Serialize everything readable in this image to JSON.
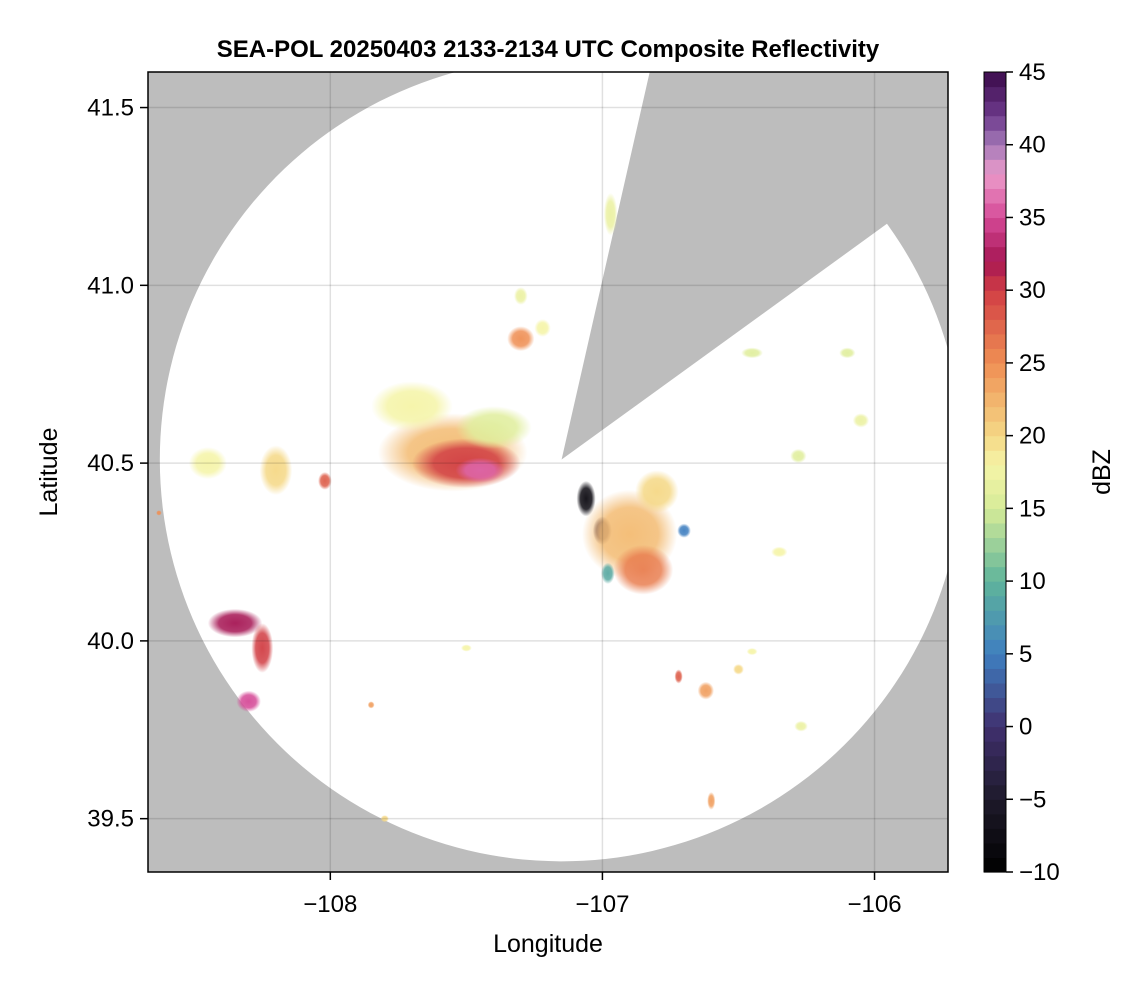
{
  "chart_data": {
    "type": "heatmap",
    "title": "SEA-POL 20250403 2133-2134 UTC Composite Reflectivity",
    "xlabel": "Longitude",
    "ylabel": "Latitude",
    "xlim": [
      -108.67,
      -105.73
    ],
    "ylim": [
      39.35,
      41.6
    ],
    "x_ticks": [
      -108,
      -107,
      -106
    ],
    "x_tick_labels": [
      "−108",
      "−107",
      "−106"
    ],
    "y_ticks": [
      39.5,
      40.0,
      40.5,
      41.0,
      41.5
    ],
    "y_tick_labels": [
      "39.5",
      "40.0",
      "40.5",
      "41.0",
      "41.5"
    ],
    "grid": true,
    "background_color": "#bdbdbd",
    "coverage_color": "#ffffff",
    "radar": {
      "center_lon": -107.15,
      "center_lat": 40.51,
      "range_deg_lat": 1.13,
      "blocked_sector": {
        "from_lon_lat": [
          -106.85,
          41.52
        ],
        "to_lon_lat": [
          -106.05,
          41.12
        ]
      }
    },
    "colorbar": {
      "label": "dBZ",
      "min": -10,
      "max": 45,
      "ticks": [
        -10,
        -5,
        0,
        5,
        10,
        15,
        20,
        25,
        30,
        35,
        40,
        45
      ],
      "tick_labels": [
        "−10",
        "−5",
        "0",
        "5",
        "10",
        "15",
        "20",
        "25",
        "30",
        "35",
        "40",
        "45"
      ],
      "stops": [
        {
          "dbz": -10,
          "color": "#000000"
        },
        {
          "dbz": -5,
          "color": "#1e1a2a"
        },
        {
          "dbz": 0,
          "color": "#40306f"
        },
        {
          "dbz": 5,
          "color": "#3f7fc0"
        },
        {
          "dbz": 10,
          "color": "#5fb49b"
        },
        {
          "dbz": 15,
          "color": "#d6eb98"
        },
        {
          "dbz": 18,
          "color": "#f5f4a7"
        },
        {
          "dbz": 20,
          "color": "#f5d886"
        },
        {
          "dbz": 25,
          "color": "#ef8f54"
        },
        {
          "dbz": 30,
          "color": "#d13e44"
        },
        {
          "dbz": 32,
          "color": "#a61654"
        },
        {
          "dbz": 35,
          "color": "#d54a97"
        },
        {
          "dbz": 38,
          "color": "#ec9bcb"
        },
        {
          "dbz": 40,
          "color": "#a57ab8"
        },
        {
          "dbz": 42,
          "color": "#6d3a8c"
        },
        {
          "dbz": 45,
          "color": "#3a0a4a"
        }
      ]
    },
    "echo_cells": [
      {
        "lon": -107.55,
        "lat": 40.53,
        "dbz": 22,
        "w": 0.55,
        "h": 0.22
      },
      {
        "lon": -107.5,
        "lat": 40.5,
        "dbz": 30,
        "w": 0.4,
        "h": 0.14
      },
      {
        "lon": -107.45,
        "lat": 40.48,
        "dbz": 36,
        "w": 0.18,
        "h": 0.07
      },
      {
        "lon": -107.7,
        "lat": 40.66,
        "dbz": 18,
        "w": 0.3,
        "h": 0.14
      },
      {
        "lon": -107.4,
        "lat": 40.6,
        "dbz": 16,
        "w": 0.28,
        "h": 0.12
      },
      {
        "lon": -107.06,
        "lat": 40.4,
        "dbz": -8,
        "w": 0.07,
        "h": 0.1
      },
      {
        "lon": -107.0,
        "lat": 40.31,
        "dbz": -2,
        "w": 0.07,
        "h": 0.08
      },
      {
        "lon": -106.9,
        "lat": 40.3,
        "dbz": 22,
        "w": 0.35,
        "h": 0.25
      },
      {
        "lon": -106.85,
        "lat": 40.2,
        "dbz": 26,
        "w": 0.22,
        "h": 0.14
      },
      {
        "lon": -106.8,
        "lat": 40.42,
        "dbz": 20,
        "w": 0.16,
        "h": 0.12
      },
      {
        "lon": -106.7,
        "lat": 40.31,
        "dbz": 5,
        "w": 0.05,
        "h": 0.04
      },
      {
        "lon": -106.98,
        "lat": 40.19,
        "dbz": 9,
        "w": 0.05,
        "h": 0.06
      },
      {
        "lon": -108.45,
        "lat": 40.5,
        "dbz": 18,
        "w": 0.14,
        "h": 0.09
      },
      {
        "lon": -108.2,
        "lat": 40.48,
        "dbz": 20,
        "w": 0.12,
        "h": 0.14
      },
      {
        "lon": -108.02,
        "lat": 40.45,
        "dbz": 28,
        "w": 0.05,
        "h": 0.05
      },
      {
        "lon": -108.35,
        "lat": 40.05,
        "dbz": 32,
        "w": 0.2,
        "h": 0.08
      },
      {
        "lon": -108.25,
        "lat": 39.98,
        "dbz": 30,
        "w": 0.08,
        "h": 0.14
      },
      {
        "lon": -108.3,
        "lat": 39.83,
        "dbz": 35,
        "w": 0.09,
        "h": 0.06
      },
      {
        "lon": -107.3,
        "lat": 40.85,
        "dbz": 25,
        "w": 0.1,
        "h": 0.07
      },
      {
        "lon": -107.22,
        "lat": 40.88,
        "dbz": 18,
        "w": 0.06,
        "h": 0.05
      },
      {
        "lon": -107.3,
        "lat": 40.97,
        "dbz": 17,
        "w": 0.05,
        "h": 0.05
      },
      {
        "lon": -106.97,
        "lat": 41.2,
        "dbz": 17,
        "w": 0.05,
        "h": 0.12
      },
      {
        "lon": -106.45,
        "lat": 40.81,
        "dbz": 16,
        "w": 0.08,
        "h": 0.03
      },
      {
        "lon": -106.1,
        "lat": 40.81,
        "dbz": 16,
        "w": 0.06,
        "h": 0.03
      },
      {
        "lon": -106.05,
        "lat": 40.62,
        "dbz": 17,
        "w": 0.06,
        "h": 0.04
      },
      {
        "lon": -106.28,
        "lat": 40.52,
        "dbz": 16,
        "w": 0.06,
        "h": 0.04
      },
      {
        "lon": -106.62,
        "lat": 39.86,
        "dbz": 24,
        "w": 0.06,
        "h": 0.05
      },
      {
        "lon": -106.72,
        "lat": 39.9,
        "dbz": 28,
        "w": 0.03,
        "h": 0.04
      },
      {
        "lon": -106.27,
        "lat": 39.76,
        "dbz": 17,
        "w": 0.05,
        "h": 0.03
      },
      {
        "lon": -106.6,
        "lat": 39.55,
        "dbz": 24,
        "w": 0.03,
        "h": 0.05
      },
      {
        "lon": -106.5,
        "lat": 39.92,
        "dbz": 20,
        "w": 0.04,
        "h": 0.03
      },
      {
        "lon": -106.35,
        "lat": 40.25,
        "dbz": 18,
        "w": 0.06,
        "h": 0.03
      },
      {
        "lon": -106.45,
        "lat": 39.97,
        "dbz": 18,
        "w": 0.04,
        "h": 0.02
      },
      {
        "lon": -107.5,
        "lat": 39.98,
        "dbz": 18,
        "w": 0.04,
        "h": 0.02
      },
      {
        "lon": -107.85,
        "lat": 39.82,
        "dbz": 24,
        "w": 0.025,
        "h": 0.02
      },
      {
        "lon": -108.63,
        "lat": 40.36,
        "dbz": 25,
        "w": 0.02,
        "h": 0.015
      },
      {
        "lon": -107.8,
        "lat": 39.5,
        "dbz": 20,
        "w": 0.03,
        "h": 0.02
      }
    ]
  }
}
